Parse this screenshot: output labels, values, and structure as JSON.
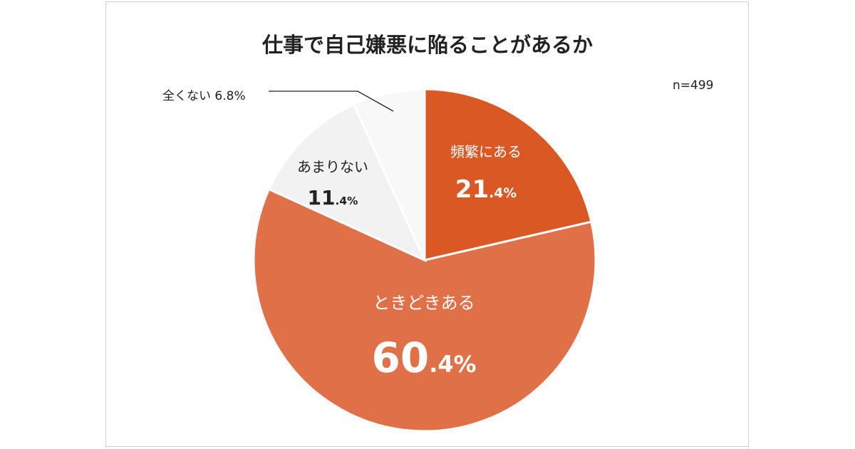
{
  "chart_data": {
    "type": "pie",
    "title": "仕事で自己嫌悪に陥ることがあるか",
    "annotation": "n=499",
    "start": "top",
    "direction": "clockwise",
    "slices": [
      {
        "label": "頻繁にある",
        "value": 21.4,
        "color": "#DA5823",
        "text_color": "#ffffff"
      },
      {
        "label": "ときどきある",
        "value": 60.4,
        "color": "#E07047",
        "text_color": "#ffffff"
      },
      {
        "label": "あまりない",
        "value": 11.4,
        "color": "#F2F2F2",
        "text_color": "#222222"
      },
      {
        "label": "全くない",
        "value": 6.8,
        "color": "#F8F8F8",
        "text_color": "#222222"
      }
    ]
  }
}
